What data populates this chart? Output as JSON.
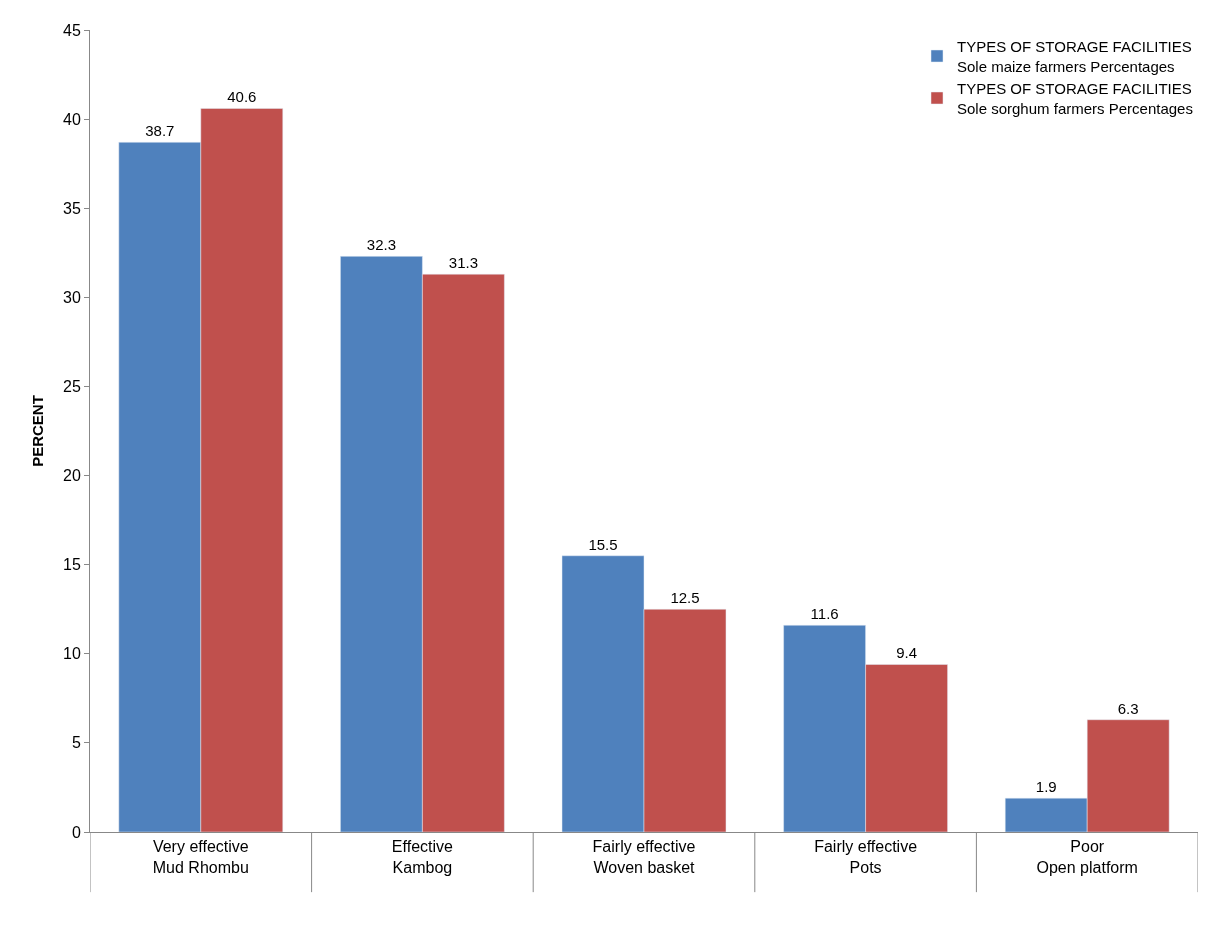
{
  "chart_data": {
    "type": "bar",
    "ylabel": "PERCENT",
    "categories": [
      "Very effective\nMud Rhombu",
      "Effective\nKambog",
      "Fairly effective\nWoven basket",
      "Fairly effective\nPots",
      "Poor\nOpen platform"
    ],
    "series": [
      {
        "name": "TYPES OF STORAGE FACILITIES\nSole maize farmers Percentages",
        "color": "#4f81bd",
        "values": [
          38.7,
          32.3,
          15.5,
          11.6,
          1.9
        ]
      },
      {
        "name": "TYPES OF STORAGE FACILITIES\nSole sorghum farmers Percentages",
        "color": "#c0504d",
        "values": [
          40.6,
          31.3,
          12.5,
          9.4,
          6.3
        ]
      }
    ],
    "ylim": [
      0,
      45
    ],
    "yticks": [
      0,
      5,
      10,
      15,
      20,
      25,
      30,
      35,
      40,
      45
    ],
    "data_labels": true,
    "legend": "top right"
  }
}
